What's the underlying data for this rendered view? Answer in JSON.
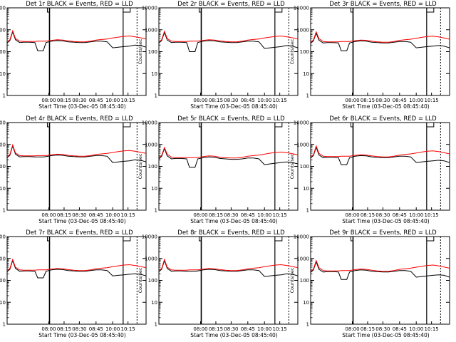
{
  "figure": {
    "start_time_label": "Start Time (03-Dec-05 08:45:40)",
    "ylabel": "Counts/sec",
    "xticks": [
      "08:00",
      "08:15",
      "08:30",
      "08:45",
      "10:00",
      "10:15"
    ],
    "yticks": [
      "1",
      "10",
      "100",
      "1000",
      "10000"
    ],
    "colors": {
      "events": "#000000",
      "lld": "#ff0000",
      "background": "#ffffff"
    }
  },
  "chart_data": [
    {
      "type": "line",
      "title": "Det 1r BLACK = Events, RED = LLD",
      "xlabel": "Start Time (03-Dec-05 08:45:40)",
      "ylabel": "Counts/sec",
      "yscale": "log",
      "ylim": [
        1,
        10000
      ],
      "xlim": [
        0,
        100
      ],
      "grid": false,
      "x": [
        0,
        2,
        4,
        6,
        9,
        12,
        16,
        20,
        22,
        24,
        26,
        28,
        32,
        36,
        40,
        44,
        48,
        52,
        56,
        60,
        64,
        68,
        72,
        76,
        80,
        84,
        88,
        92,
        96,
        100
      ],
      "series": [
        {
          "name": "BLACK = Events",
          "values": [
            250,
            320,
            800,
            350,
            260,
            270,
            270,
            260,
            110,
            110,
            110,
            260,
            300,
            320,
            310,
            280,
            270,
            260,
            260,
            280,
            300,
            300,
            280,
            150,
            160,
            170,
            180,
            200,
            190,
            160
          ]
        },
        {
          "name": "RED = LLD",
          "values": [
            280,
            350,
            900,
            400,
            300,
            290,
            290,
            290,
            300,
            300,
            300,
            300,
            330,
            350,
            340,
            310,
            290,
            280,
            280,
            300,
            340,
            360,
            380,
            420,
            460,
            500,
            520,
            480,
            430,
            380
          ]
        }
      ]
    },
    {
      "type": "line",
      "title": "Det 2r BLACK = Events, RED = LLD",
      "xlabel": "Start Time (03-Dec-05 08:45:40)",
      "ylabel": "Counts/sec",
      "yscale": "log",
      "ylim": [
        1,
        10000
      ],
      "xlim": [
        0,
        100
      ],
      "grid": false,
      "x": [
        0,
        2,
        4,
        6,
        9,
        12,
        16,
        20,
        22,
        24,
        26,
        28,
        32,
        36,
        40,
        44,
        48,
        52,
        56,
        60,
        64,
        68,
        72,
        76,
        80,
        84,
        88,
        92,
        96,
        100
      ],
      "series": [
        {
          "name": "BLACK = Events",
          "values": [
            250,
            320,
            750,
            340,
            260,
            270,
            270,
            260,
            100,
            100,
            100,
            260,
            300,
            320,
            310,
            280,
            270,
            260,
            260,
            280,
            300,
            300,
            280,
            140,
            150,
            160,
            170,
            190,
            180,
            150
          ]
        },
        {
          "name": "RED = LLD",
          "values": [
            280,
            350,
            850,
            400,
            300,
            290,
            290,
            290,
            300,
            300,
            300,
            300,
            330,
            350,
            340,
            310,
            290,
            280,
            280,
            300,
            340,
            360,
            380,
            420,
            460,
            500,
            520,
            480,
            430,
            380
          ]
        }
      ]
    },
    {
      "type": "line",
      "title": "Det 3r BLACK = Events, RED = LLD",
      "xlabel": "Start Time (03-Dec-05 08:45:40)",
      "ylabel": "Counts/sec",
      "yscale": "log",
      "ylim": [
        1,
        10000
      ],
      "xlim": [
        0,
        100
      ],
      "grid": false,
      "x": [
        0,
        2,
        4,
        6,
        9,
        12,
        16,
        20,
        22,
        24,
        26,
        28,
        32,
        36,
        40,
        44,
        48,
        52,
        56,
        60,
        64,
        68,
        72,
        76,
        80,
        84,
        88,
        92,
        96,
        100
      ],
      "series": [
        {
          "name": "BLACK = Events",
          "values": [
            240,
            310,
            700,
            330,
            250,
            260,
            260,
            250,
            110,
            110,
            110,
            250,
            290,
            310,
            300,
            270,
            260,
            250,
            250,
            270,
            290,
            290,
            270,
            150,
            160,
            170,
            180,
            190,
            180,
            150
          ]
        },
        {
          "name": "RED = LLD",
          "values": [
            270,
            340,
            800,
            390,
            290,
            280,
            280,
            280,
            290,
            290,
            290,
            290,
            320,
            340,
            330,
            300,
            280,
            270,
            270,
            290,
            330,
            350,
            370,
            410,
            450,
            490,
            510,
            470,
            420,
            370
          ]
        }
      ]
    },
    {
      "type": "line",
      "title": "Det 4r BLACK = Events, RED = LLD",
      "xlabel": "Start Time (03-Dec-05 08:45:40)",
      "ylabel": "Counts/sec",
      "yscale": "log",
      "ylim": [
        1,
        10000
      ],
      "xlim": [
        0,
        100
      ],
      "grid": false,
      "x": [
        0,
        2,
        4,
        6,
        9,
        12,
        16,
        20,
        22,
        24,
        26,
        28,
        32,
        36,
        40,
        44,
        48,
        52,
        56,
        60,
        64,
        68,
        72,
        76,
        80,
        84,
        88,
        92,
        96,
        100
      ],
      "series": [
        {
          "name": "BLACK = Events",
          "values": [
            250,
            320,
            850,
            360,
            270,
            280,
            280,
            270,
            270,
            270,
            270,
            280,
            310,
            330,
            320,
            290,
            280,
            270,
            270,
            290,
            310,
            310,
            290,
            150,
            160,
            170,
            180,
            200,
            190,
            160
          ]
        },
        {
          "name": "RED = LLD",
          "values": [
            280,
            350,
            950,
            410,
            310,
            300,
            300,
            300,
            310,
            310,
            310,
            310,
            340,
            360,
            350,
            320,
            300,
            290,
            290,
            310,
            350,
            370,
            390,
            430,
            470,
            510,
            530,
            490,
            440,
            390
          ]
        }
      ]
    },
    {
      "type": "line",
      "title": "Det 5r BLACK = Events, RED = LLD",
      "xlabel": "Start Time (03-Dec-05 08:45:40)",
      "ylabel": "Counts/sec",
      "yscale": "log",
      "ylim": [
        1,
        10000
      ],
      "xlim": [
        0,
        100
      ],
      "grid": false,
      "x": [
        0,
        2,
        4,
        6,
        9,
        12,
        16,
        20,
        22,
        24,
        26,
        28,
        32,
        36,
        40,
        44,
        48,
        52,
        56,
        60,
        64,
        68,
        72,
        76,
        80,
        84,
        88,
        92,
        96,
        100
      ],
      "series": [
        {
          "name": "BLACK = Events",
          "values": [
            220,
            290,
            650,
            300,
            220,
            230,
            230,
            220,
            90,
            90,
            90,
            220,
            250,
            270,
            260,
            230,
            220,
            210,
            210,
            220,
            240,
            240,
            220,
            120,
            130,
            140,
            150,
            160,
            150,
            130
          ]
        },
        {
          "name": "RED = LLD",
          "values": [
            250,
            320,
            720,
            360,
            260,
            250,
            250,
            250,
            250,
            250,
            250,
            250,
            280,
            300,
            290,
            260,
            250,
            240,
            240,
            260,
            290,
            310,
            330,
            360,
            400,
            430,
            450,
            420,
            380,
            340
          ]
        }
      ]
    },
    {
      "type": "line",
      "title": "Det 6r BLACK = Events, RED = LLD",
      "xlabel": "Start Time (03-Dec-05 08:45:40)",
      "ylabel": "Counts/sec",
      "yscale": "log",
      "ylim": [
        1,
        10000
      ],
      "xlim": [
        0,
        100
      ],
      "grid": false,
      "x": [
        0,
        2,
        4,
        6,
        9,
        12,
        16,
        20,
        22,
        24,
        26,
        28,
        32,
        36,
        40,
        44,
        48,
        52,
        56,
        60,
        64,
        68,
        72,
        76,
        80,
        84,
        88,
        92,
        96,
        100
      ],
      "series": [
        {
          "name": "BLACK = Events",
          "values": [
            240,
            310,
            750,
            330,
            250,
            260,
            260,
            250,
            120,
            120,
            120,
            250,
            290,
            310,
            300,
            270,
            260,
            250,
            250,
            270,
            290,
            290,
            270,
            150,
            160,
            170,
            180,
            190,
            180,
            150
          ]
        },
        {
          "name": "RED = LLD",
          "values": [
            270,
            340,
            850,
            390,
            290,
            280,
            280,
            280,
            290,
            290,
            290,
            290,
            320,
            340,
            330,
            300,
            280,
            270,
            270,
            290,
            330,
            350,
            370,
            410,
            450,
            490,
            510,
            470,
            420,
            370
          ]
        }
      ]
    },
    {
      "type": "line",
      "title": "Det 7r BLACK = Events, RED = LLD",
      "xlabel": "Start Time (03-Dec-05 08:45:40)",
      "ylabel": "Counts/sec",
      "yscale": "log",
      "ylim": [
        1,
        10000
      ],
      "xlim": [
        0,
        100
      ],
      "grid": false,
      "x": [
        0,
        2,
        4,
        6,
        9,
        12,
        16,
        20,
        22,
        24,
        26,
        28,
        32,
        36,
        40,
        44,
        48,
        52,
        56,
        60,
        64,
        68,
        72,
        76,
        80,
        84,
        88,
        92,
        96,
        100
      ],
      "series": [
        {
          "name": "BLACK = Events",
          "values": [
            250,
            320,
            800,
            350,
            260,
            270,
            270,
            260,
            130,
            130,
            130,
            260,
            300,
            320,
            310,
            280,
            270,
            260,
            260,
            280,
            300,
            300,
            280,
            160,
            170,
            180,
            190,
            200,
            190,
            160
          ]
        },
        {
          "name": "RED = LLD",
          "values": [
            280,
            350,
            900,
            400,
            300,
            290,
            290,
            290,
            300,
            300,
            300,
            300,
            330,
            350,
            340,
            310,
            290,
            280,
            280,
            300,
            340,
            360,
            380,
            420,
            460,
            500,
            520,
            480,
            430,
            380
          ]
        }
      ]
    },
    {
      "type": "line",
      "title": "Det 8r BLACK = Events, RED = LLD",
      "xlabel": "Start Time (03-Dec-05 08:45:40)",
      "ylabel": "Counts/sec",
      "yscale": "log",
      "ylim": [
        1,
        10000
      ],
      "xlim": [
        0,
        100
      ],
      "grid": false,
      "x": [
        0,
        2,
        4,
        6,
        9,
        12,
        16,
        20,
        22,
        24,
        26,
        28,
        32,
        36,
        40,
        44,
        48,
        52,
        56,
        60,
        64,
        68,
        72,
        76,
        80,
        84,
        88,
        92,
        96,
        100
      ],
      "series": [
        {
          "name": "BLACK = Events",
          "values": [
            250,
            320,
            800,
            350,
            260,
            270,
            270,
            260,
            260,
            260,
            260,
            270,
            300,
            320,
            310,
            280,
            270,
            260,
            260,
            280,
            300,
            300,
            280,
            150,
            160,
            170,
            180,
            200,
            190,
            160
          ]
        },
        {
          "name": "RED = LLD",
          "values": [
            280,
            350,
            900,
            400,
            300,
            290,
            290,
            290,
            300,
            300,
            300,
            300,
            330,
            350,
            340,
            310,
            290,
            280,
            280,
            300,
            340,
            360,
            380,
            420,
            460,
            500,
            520,
            480,
            430,
            380
          ]
        }
      ]
    },
    {
      "type": "line",
      "title": "Det 9r BLACK = Events, RED = LLD",
      "xlabel": "Start Time (03-Dec-05 08:45:40)",
      "ylabel": "Counts/sec",
      "yscale": "log",
      "ylim": [
        1,
        10000
      ],
      "xlim": [
        0,
        100
      ],
      "grid": false,
      "x": [
        0,
        2,
        4,
        6,
        9,
        12,
        16,
        20,
        22,
        24,
        26,
        28,
        32,
        36,
        40,
        44,
        48,
        52,
        56,
        60,
        64,
        68,
        72,
        76,
        80,
        84,
        88,
        92,
        96,
        100
      ],
      "series": [
        {
          "name": "BLACK = Events",
          "values": [
            230,
            300,
            700,
            320,
            240,
            250,
            250,
            240,
            110,
            110,
            110,
            240,
            280,
            300,
            290,
            260,
            250,
            240,
            240,
            260,
            280,
            280,
            260,
            140,
            150,
            160,
            170,
            180,
            170,
            140
          ]
        },
        {
          "name": "RED = LLD",
          "values": [
            260,
            330,
            800,
            380,
            280,
            270,
            270,
            270,
            280,
            280,
            280,
            280,
            310,
            330,
            320,
            290,
            270,
            260,
            260,
            280,
            320,
            340,
            360,
            400,
            440,
            480,
            500,
            460,
            410,
            360
          ]
        }
      ]
    }
  ]
}
